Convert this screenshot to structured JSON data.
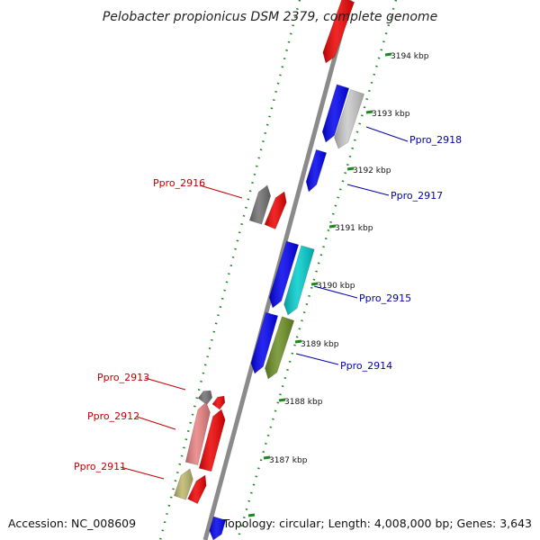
{
  "title": "Pelobacter propionicus DSM 2379, complete genome",
  "footer": {
    "accession": "Accession: NC_008609",
    "topology": "Topology: circular; Length: 4,008,000 bp; Genes: 3,643"
  },
  "ticks": [
    {
      "label": "3194 kbp"
    },
    {
      "label": "3193 kbp"
    },
    {
      "label": "3192 kbp"
    },
    {
      "label": "3191 kbp"
    },
    {
      "label": "3190 kbp"
    },
    {
      "label": "3189 kbp"
    },
    {
      "label": "3188 kbp"
    },
    {
      "label": "3187 kbp"
    }
  ],
  "gene_labels": [
    {
      "label": "Ppro_2918",
      "color": "#0000aa"
    },
    {
      "label": "Ppro_2917",
      "color": "#0000aa"
    },
    {
      "label": "Ppro_2915",
      "color": "#0000aa"
    },
    {
      "label": "Ppro_2914",
      "color": "#0000aa"
    },
    {
      "label": "Ppro_2916",
      "color": "#c00000"
    },
    {
      "label": "Ppro_2913",
      "color": "#c00000"
    },
    {
      "label": "Ppro_2912",
      "color": "#c00000"
    },
    {
      "label": "Ppro_2911",
      "color": "#c00000"
    }
  ],
  "colors": {
    "backbone": "#8a8a8a",
    "tick": "#1a8a1a",
    "cds_forward": "#0000ee",
    "cds_reverse": "#ee0000",
    "light_gray": "#c8c8c8",
    "dark_gray": "#707070",
    "cyan": "#00cccc",
    "olive": "#6b8e23",
    "pink": "#e88080",
    "khaki": "#bdb76b"
  }
}
